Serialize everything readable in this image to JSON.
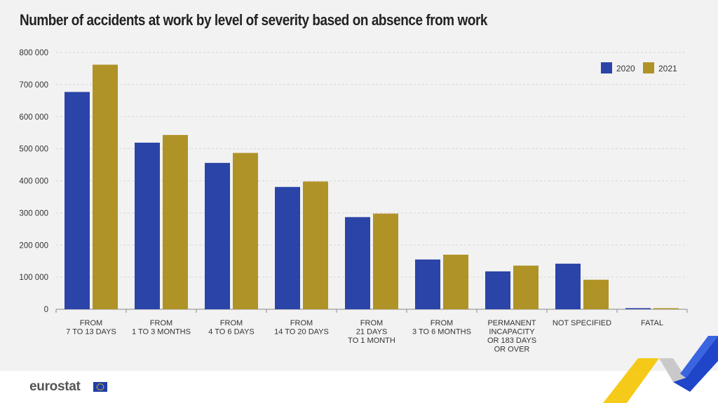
{
  "header": {
    "title": "Number of accidents at work by level of severity based on absence from work"
  },
  "footer": {
    "brand": "eurostat"
  },
  "colors": {
    "series_2020": "#2a44a8",
    "series_2021": "#b09327",
    "grid": "#d7d7d7",
    "axis": "#888888",
    "text": "#333333"
  },
  "chart_data": {
    "type": "bar",
    "title": "Number of accidents at work by level of severity based on absence from work",
    "xlabel": "",
    "ylabel": "",
    "ylim": [
      0,
      800000
    ],
    "yticks": [
      {
        "value": 0,
        "label": "0"
      },
      {
        "value": 100000,
        "label": "100 000"
      },
      {
        "value": 200000,
        "label": "200 000"
      },
      {
        "value": 300000,
        "label": "300 000"
      },
      {
        "value": 400000,
        "label": "400 000"
      },
      {
        "value": 500000,
        "label": "500 000"
      },
      {
        "value": 600000,
        "label": "600 000"
      },
      {
        "value": 700000,
        "label": "700 000"
      },
      {
        "value": 800000,
        "label": "800 000"
      }
    ],
    "grid": true,
    "legend_position": "top-right",
    "categories": [
      [
        "FROM",
        "7 TO 13 DAYS"
      ],
      [
        "FROM",
        "1 TO 3 MONTHS"
      ],
      [
        "FROM",
        "4 TO 6 DAYS"
      ],
      [
        "FROM",
        "14 TO 20 DAYS"
      ],
      [
        "FROM",
        "21 DAYS",
        "TO 1 MONTH"
      ],
      [
        "FROM",
        "3 TO 6 MONTHS"
      ],
      [
        "PERMANENT",
        "INCAPACITY",
        "OR 183 DAYS",
        "OR OVER"
      ],
      [
        "NOT SPECIFIED"
      ],
      [
        "FATAL"
      ]
    ],
    "series": [
      {
        "name": "2020",
        "values": [
          677000,
          519000,
          456000,
          381000,
          287000,
          155000,
          118000,
          142000,
          3400
        ]
      },
      {
        "name": "2021",
        "values": [
          762000,
          543000,
          487000,
          398000,
          298000,
          170000,
          136000,
          92000,
          3300
        ]
      }
    ]
  }
}
